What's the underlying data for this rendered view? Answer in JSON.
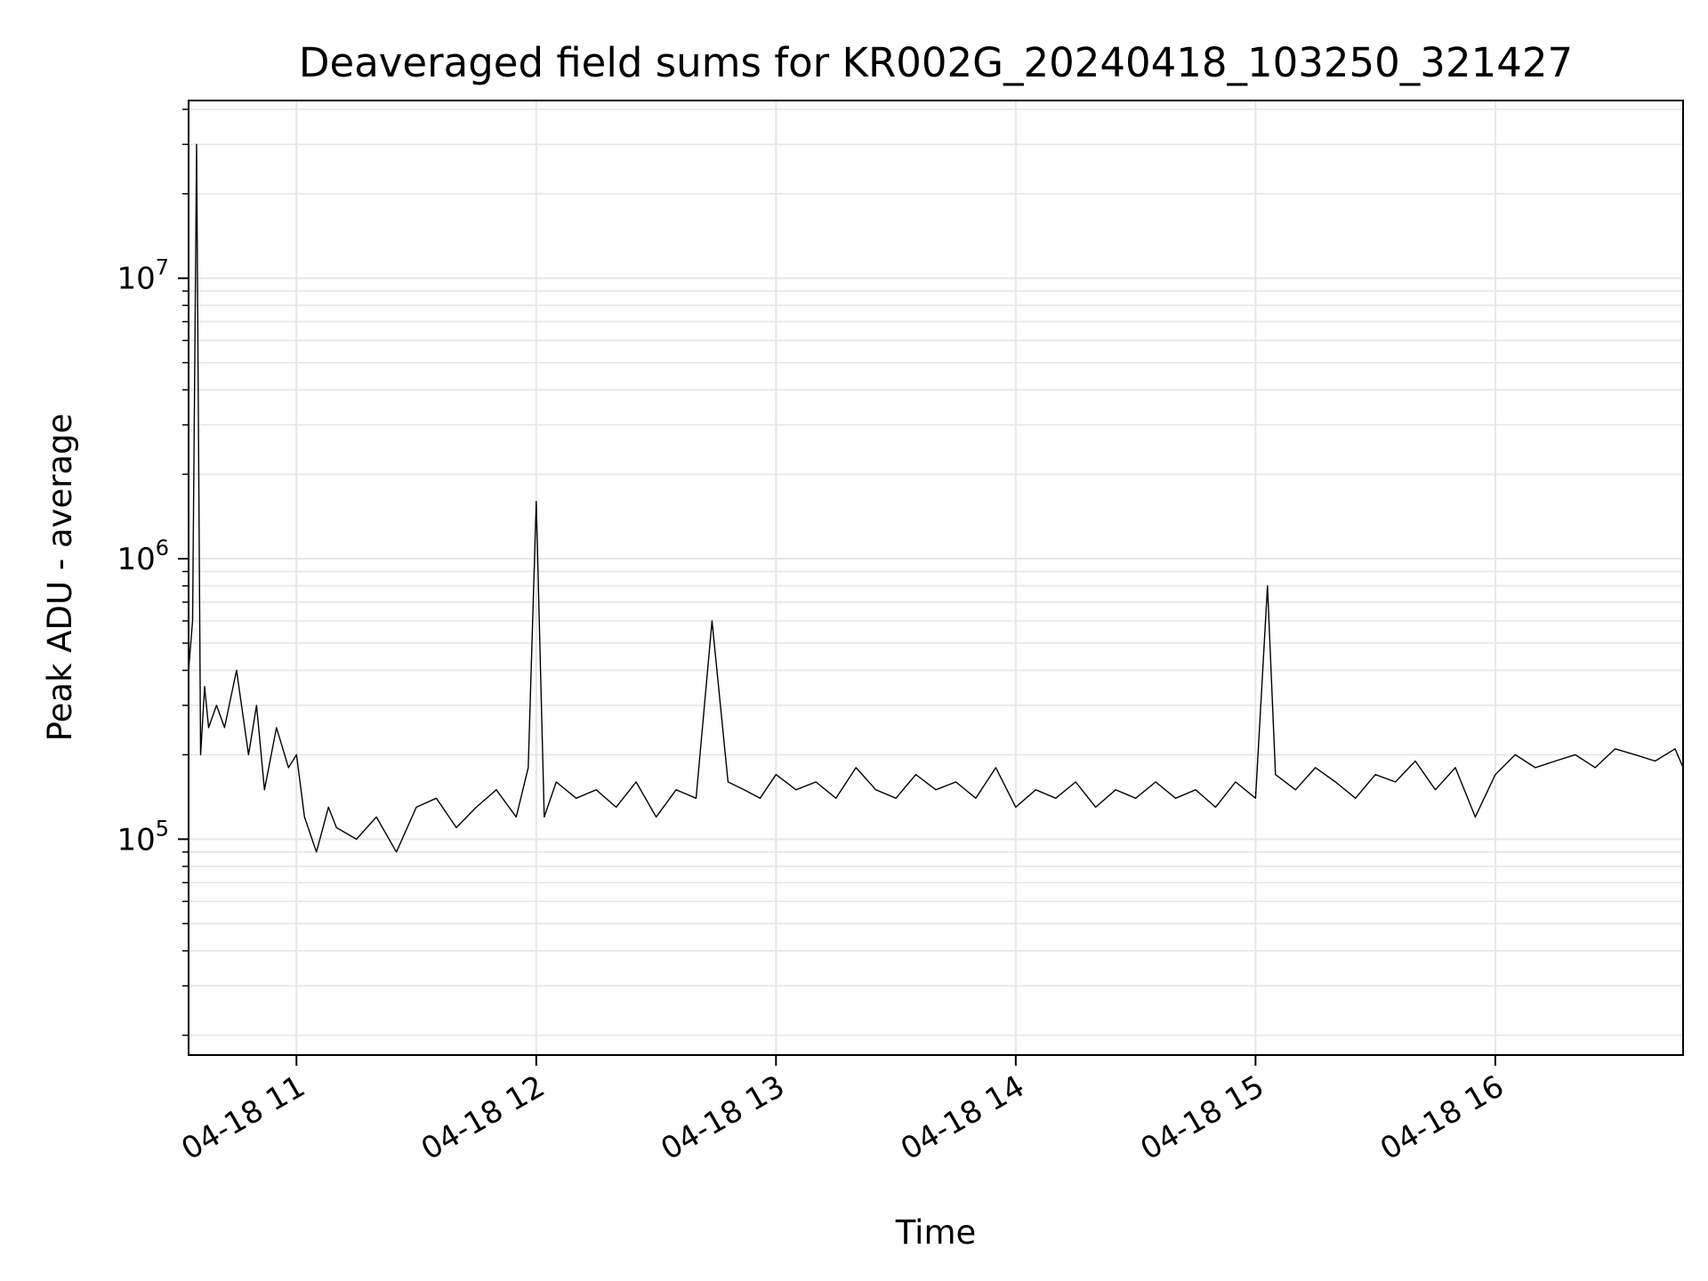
{
  "chart_data": {
    "type": "line",
    "title": "Deaveraged field sums for KR002G_20240418_103250_321427",
    "xlabel": "Time",
    "ylabel": "Peak ADU - average",
    "yscale": "log",
    "xlim": [
      "04-18 10:33",
      "04-18 16:47"
    ],
    "ylim": [
      17000,
      43000000
    ],
    "grid": true,
    "line_color": "#000000",
    "grid_color": "#e6e6e6",
    "x_ticks": [
      {
        "value": "04-18 11:00",
        "label": "04-18 11"
      },
      {
        "value": "04-18 12:00",
        "label": "04-18 12"
      },
      {
        "value": "04-18 13:00",
        "label": "04-18 13"
      },
      {
        "value": "04-18 14:00",
        "label": "04-18 14"
      },
      {
        "value": "04-18 15:00",
        "label": "04-18 15"
      },
      {
        "value": "04-18 16:00",
        "label": "04-18 16"
      }
    ],
    "y_ticks": [
      {
        "value": 100000,
        "base": "10",
        "exp": "5"
      },
      {
        "value": 1000000,
        "base": "10",
        "exp": "6"
      },
      {
        "value": 10000000,
        "base": "10",
        "exp": "7"
      }
    ],
    "series": [
      {
        "x": [
          "04-18 10:33",
          "04-18 10:34",
          "04-18 10:35",
          "04-18 10:36",
          "04-18 10:37",
          "04-18 10:38",
          "04-18 10:40",
          "04-18 10:42",
          "04-18 10:45",
          "04-18 10:48",
          "04-18 10:50",
          "04-18 10:52",
          "04-18 10:55",
          "04-18 10:58",
          "04-18 11:00",
          "04-18 11:02",
          "04-18 11:05",
          "04-18 11:08",
          "04-18 11:10",
          "04-18 11:15",
          "04-18 11:20",
          "04-18 11:25",
          "04-18 11:30",
          "04-18 11:35",
          "04-18 11:40",
          "04-18 11:45",
          "04-18 11:50",
          "04-18 11:55",
          "04-18 11:58",
          "04-18 12:00",
          "04-18 12:02",
          "04-18 12:05",
          "04-18 12:10",
          "04-18 12:15",
          "04-18 12:20",
          "04-18 12:25",
          "04-18 12:30",
          "04-18 12:35",
          "04-18 12:40",
          "04-18 12:44",
          "04-18 12:48",
          "04-18 12:52",
          "04-18 12:56",
          "04-18 13:00",
          "04-18 13:05",
          "04-18 13:10",
          "04-18 13:15",
          "04-18 13:20",
          "04-18 13:25",
          "04-18 13:30",
          "04-18 13:35",
          "04-18 13:40",
          "04-18 13:45",
          "04-18 13:50",
          "04-18 13:55",
          "04-18 14:00",
          "04-18 14:05",
          "04-18 14:10",
          "04-18 14:15",
          "04-18 14:20",
          "04-18 14:25",
          "04-18 14:30",
          "04-18 14:35",
          "04-18 14:40",
          "04-18 14:45",
          "04-18 14:50",
          "04-18 14:55",
          "04-18 15:00",
          "04-18 15:03",
          "04-18 15:05",
          "04-18 15:10",
          "04-18 15:15",
          "04-18 15:20",
          "04-18 15:25",
          "04-18 15:30",
          "04-18 15:35",
          "04-18 15:40",
          "04-18 15:45",
          "04-18 15:50",
          "04-18 15:55",
          "04-18 16:00",
          "04-18 16:05",
          "04-18 16:10",
          "04-18 16:15",
          "04-18 16:20",
          "04-18 16:25",
          "04-18 16:30",
          "04-18 16:35",
          "04-18 16:40",
          "04-18 16:45",
          "04-18 16:47"
        ],
        "y": [
          400000,
          600000,
          30000000,
          200000,
          350000,
          250000,
          300000,
          250000,
          400000,
          200000,
          300000,
          150000,
          250000,
          180000,
          200000,
          120000,
          90000,
          130000,
          110000,
          100000,
          120000,
          90000,
          130000,
          140000,
          110000,
          130000,
          150000,
          120000,
          180000,
          1600000,
          120000,
          160000,
          140000,
          150000,
          130000,
          160000,
          120000,
          150000,
          140000,
          600000,
          160000,
          150000,
          140000,
          170000,
          150000,
          160000,
          140000,
          180000,
          150000,
          140000,
          170000,
          150000,
          160000,
          140000,
          180000,
          130000,
          150000,
          140000,
          160000,
          130000,
          150000,
          140000,
          160000,
          140000,
          150000,
          130000,
          160000,
          140000,
          800000,
          170000,
          150000,
          180000,
          160000,
          140000,
          170000,
          160000,
          190000,
          150000,
          180000,
          120000,
          170000,
          200000,
          180000,
          190000,
          200000,
          180000,
          210000,
          200000,
          190000,
          210000,
          180000
        ]
      }
    ]
  }
}
